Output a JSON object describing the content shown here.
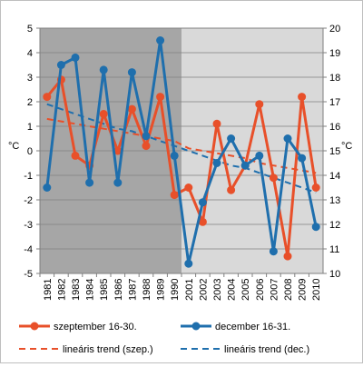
{
  "chart_data": {
    "type": "line",
    "title": "",
    "xlabel": "",
    "left_axis": {
      "label": "°C",
      "range": [
        -5,
        5
      ],
      "ticks": [
        "5",
        "4",
        "3",
        "2",
        "1",
        "0",
        "-1",
        "-2",
        "-3",
        "-4",
        "-5"
      ]
    },
    "right_axis": {
      "label": "°C",
      "range": [
        10,
        20
      ],
      "ticks": [
        "20",
        "19",
        "18",
        "17",
        "16",
        "15",
        "14",
        "13",
        "12",
        "11",
        "10"
      ]
    },
    "categories": [
      "1981",
      "1982",
      "1983",
      "1984",
      "1985",
      "1986",
      "1987",
      "1988",
      "1989",
      "1990",
      "2001",
      "2002",
      "2003",
      "2004",
      "2005",
      "2006",
      "2007",
      "2008",
      "2009",
      "2010"
    ],
    "periods": [
      {
        "from": "1981",
        "to": "1990",
        "shade": "#a6a6a6"
      },
      {
        "from": "2001",
        "to": "2010",
        "shade": "#d9d9d9"
      }
    ],
    "grid": true,
    "legend_position": "bottom",
    "series": [
      {
        "name": "szeptember 16-30.",
        "axis": "right",
        "color": "#e8502a",
        "style": "line-markers",
        "values": [
          17.2,
          17.9,
          14.8,
          14.4,
          16.5,
          15.0,
          16.7,
          15.2,
          17.2,
          13.2,
          13.5,
          12.1,
          16.1,
          13.4,
          14.4,
          16.9,
          13.9,
          10.7,
          17.2,
          13.5
        ]
      },
      {
        "name": "december 16-31.",
        "axis": "left",
        "color": "#1f6fad",
        "style": "line-markers",
        "values": [
          -1.5,
          3.5,
          3.8,
          -1.3,
          3.3,
          -1.3,
          3.2,
          0.6,
          4.5,
          -0.2,
          -4.6,
          -2.1,
          -0.5,
          0.5,
          -0.6,
          -0.2,
          -4.1,
          0.5,
          -0.3,
          -3.1
        ]
      },
      {
        "name": "lineáris trend (szep.)",
        "axis": "right",
        "color": "#e8502a",
        "style": "dashed",
        "values": [
          16.3,
          16.2,
          16.1,
          16.0,
          15.9,
          15.8,
          15.7,
          15.6,
          15.5,
          15.4,
          15.1,
          15.0,
          14.9,
          14.8,
          14.7,
          14.5,
          14.4,
          14.3,
          14.2,
          14.1
        ]
      },
      {
        "name": "lineáris trend (dec.)",
        "axis": "left",
        "color": "#1f6fad",
        "style": "dashed",
        "values": [
          1.9,
          1.7,
          1.5,
          1.3,
          1.1,
          0.9,
          0.8,
          0.6,
          0.4,
          0.2,
          0.0,
          -0.2,
          -0.4,
          -0.6,
          -0.7,
          -0.9,
          -1.1,
          -1.3,
          -1.5,
          -1.7
        ]
      }
    ]
  }
}
